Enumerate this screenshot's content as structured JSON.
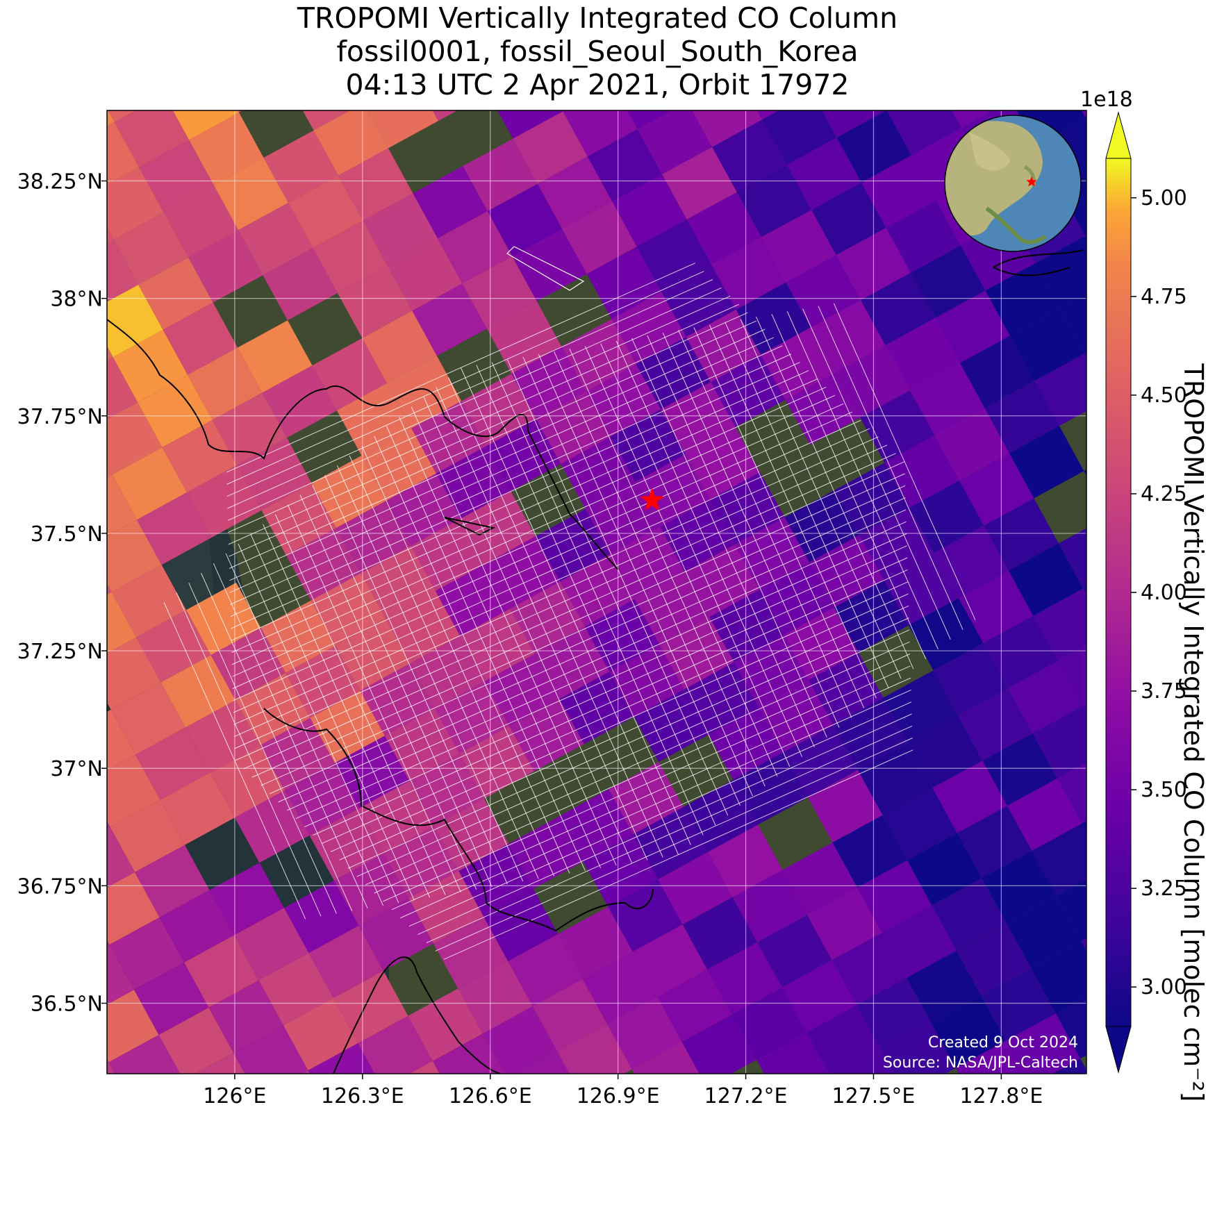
{
  "title": {
    "line1": "TROPOMI Vertically Integrated CO Column",
    "line2": "fossil0001, fossil_Seoul_South_Korea",
    "line3": "04:13 UTC 2 Apr 2021, Orbit 17972"
  },
  "map": {
    "lon_range": [
      125.7,
      128.0
    ],
    "lat_range": [
      36.35,
      38.4
    ],
    "lon_ticks": [
      {
        "value": 126.0,
        "label": "126°E"
      },
      {
        "value": 126.3,
        "label": "126.3°E"
      },
      {
        "value": 126.6,
        "label": "126.6°E"
      },
      {
        "value": 126.9,
        "label": "126.9°E"
      },
      {
        "value": 127.2,
        "label": "127.2°E"
      },
      {
        "value": 127.5,
        "label": "127.5°E"
      },
      {
        "value": 127.8,
        "label": "127.8°E"
      }
    ],
    "lat_ticks": [
      {
        "value": 38.25,
        "label": "38.25°N"
      },
      {
        "value": 38.0,
        "label": "38°N"
      },
      {
        "value": 37.75,
        "label": "37.75°N"
      },
      {
        "value": 37.5,
        "label": "37.5°N"
      },
      {
        "value": 37.25,
        "label": "37.25°N"
      },
      {
        "value": 37.0,
        "label": "37°N"
      },
      {
        "value": 36.75,
        "label": "36.75°N"
      },
      {
        "value": 36.5,
        "label": "36.5°N"
      }
    ],
    "target": {
      "name": "fossil_Seoul_South_Korea",
      "lon": 126.98,
      "lat": 37.57,
      "marker": "red-star"
    },
    "inset_globe": {
      "center": "East Asia",
      "marker": "red-star"
    },
    "credit_line1": "Created 9 Oct 2024",
    "credit_line2": "Source: NASA/JPL-Caltech"
  },
  "colorbar": {
    "colormap": "plasma",
    "min": 3.0,
    "max": 5.0,
    "range_shown": [
      2.9,
      5.1
    ],
    "exponent_label": "1e18",
    "label": "TROPOMI Vertically Integrated CO Column [molec cm⁻²]",
    "ticks": [
      "3.00",
      "3.25",
      "3.50",
      "3.75",
      "4.00",
      "4.25",
      "4.50",
      "4.75",
      "5.00"
    ],
    "extend": "both"
  },
  "colors": {
    "land": "#3f4a31",
    "water": "#22343a",
    "deep_water": "#131f27",
    "gridline": "#ffffff",
    "coastline": "#000000",
    "target_overlay": "#ffffff",
    "star": "#ff0000"
  }
}
